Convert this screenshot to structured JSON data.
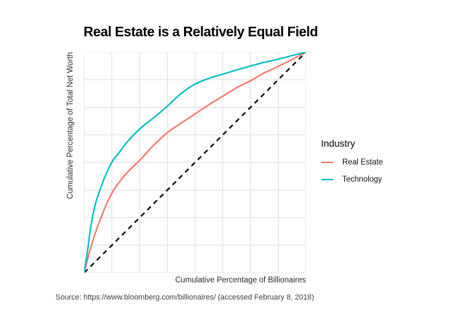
{
  "chart_data": {
    "type": "line",
    "title": "Real Estate is a Relatively Equal Field",
    "xlabel": "Cumulative Percentage of Billionaires",
    "ylabel": "Cumulative Percentage of Total Net Worth",
    "caption": "Source: https://www.bloomberg.com/billionaires/ (accessed February 8, 2018)",
    "legend_title": "Industry",
    "legend_position": "right",
    "xlim": [
      0,
      1
    ],
    "ylim": [
      0,
      1
    ],
    "grid": {
      "divisions": 8,
      "color": "#dedede",
      "tick_labels_shown": false
    },
    "series": [
      {
        "name": "Real Estate",
        "color": "#F8766D",
        "style": "solid",
        "in_legend": true,
        "points": [
          [
            0,
            0
          ],
          [
            0.02,
            0.08
          ],
          [
            0.05,
            0.18
          ],
          [
            0.08,
            0.26
          ],
          [
            0.1,
            0.31
          ],
          [
            0.13,
            0.37
          ],
          [
            0.15,
            0.4
          ],
          [
            0.19,
            0.45
          ],
          [
            0.26,
            0.52
          ],
          [
            0.31,
            0.575
          ],
          [
            0.375,
            0.635
          ],
          [
            0.44,
            0.68
          ],
          [
            0.5,
            0.72
          ],
          [
            0.56,
            0.76
          ],
          [
            0.625,
            0.8
          ],
          [
            0.69,
            0.84
          ],
          [
            0.75,
            0.87
          ],
          [
            0.81,
            0.905
          ],
          [
            0.875,
            0.935
          ],
          [
            0.94,
            0.968
          ],
          [
            1,
            1
          ]
        ]
      },
      {
        "name": "Technology",
        "color": "#00BFC4",
        "style": "solid",
        "in_legend": true,
        "points": [
          [
            0,
            0
          ],
          [
            0.015,
            0.1
          ],
          [
            0.03,
            0.21
          ],
          [
            0.05,
            0.31
          ],
          [
            0.08,
            0.4
          ],
          [
            0.1,
            0.45
          ],
          [
            0.13,
            0.51
          ],
          [
            0.15,
            0.535
          ],
          [
            0.2,
            0.6
          ],
          [
            0.26,
            0.66
          ],
          [
            0.31,
            0.7
          ],
          [
            0.375,
            0.755
          ],
          [
            0.44,
            0.815
          ],
          [
            0.5,
            0.855
          ],
          [
            0.56,
            0.88
          ],
          [
            0.625,
            0.9
          ],
          [
            0.69,
            0.92
          ],
          [
            0.75,
            0.937
          ],
          [
            0.81,
            0.953
          ],
          [
            0.875,
            0.968
          ],
          [
            0.94,
            0.985
          ],
          [
            1,
            1
          ]
        ]
      },
      {
        "name": "Line of Equality",
        "color": "#000000",
        "style": "dashed",
        "in_legend": false,
        "points": [
          [
            0,
            0
          ],
          [
            1,
            1
          ]
        ]
      }
    ],
    "colors": {
      "background": "#ffffff",
      "title": "#000000",
      "axis_title": "#2b2b2b",
      "caption": "#3d3d3d",
      "grid": "#dedede"
    }
  }
}
